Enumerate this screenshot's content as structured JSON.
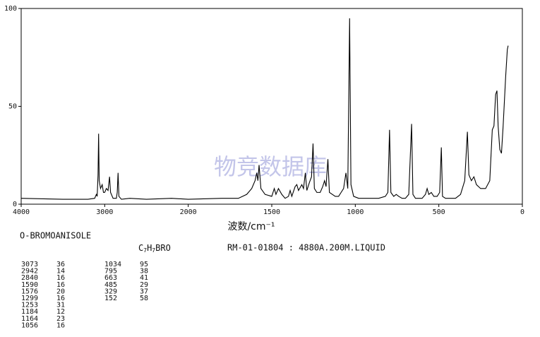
{
  "chart_data": {
    "type": "line",
    "x_label": "波数/cm⁻¹",
    "watermark": "物竞数据库",
    "xlim": [
      4000,
      0
    ],
    "xticks": [
      4000,
      3000,
      2000,
      1500,
      1000,
      500,
      0
    ],
    "ylim": [
      0,
      100
    ],
    "yticks": [
      0,
      50,
      100
    ],
    "color": "#000000",
    "x": [
      4000,
      3500,
      3200,
      3120,
      3100,
      3090,
      3080,
      3073,
      3066,
      3050,
      3030,
      3015,
      3000,
      2980,
      2960,
      2942,
      2930,
      2900,
      2860,
      2850,
      2840,
      2830,
      2800,
      2700,
      2500,
      2200,
      2000,
      1800,
      1700,
      1650,
      1620,
      1600,
      1590,
      1583,
      1576,
      1565,
      1540,
      1500,
      1485,
      1475,
      1460,
      1440,
      1420,
      1400,
      1390,
      1380,
      1360,
      1350,
      1340,
      1320,
      1310,
      1299,
      1290,
      1275,
      1262,
      1253,
      1245,
      1230,
      1210,
      1195,
      1184,
      1175,
      1164,
      1155,
      1120,
      1100,
      1085,
      1070,
      1056,
      1045,
      1034,
      1026,
      1010,
      980,
      950,
      900,
      860,
      820,
      805,
      795,
      787,
      770,
      755,
      740,
      720,
      700,
      680,
      663,
      655,
      640,
      600,
      580,
      570,
      560,
      545,
      530,
      510,
      495,
      485,
      478,
      460,
      420,
      400,
      370,
      345,
      329,
      320,
      305,
      290,
      275,
      250,
      220,
      195,
      180,
      170,
      160,
      152,
      145,
      135,
      125,
      115,
      100,
      90,
      85
    ],
    "values": [
      3,
      2.5,
      2.5,
      3,
      5,
      4,
      15,
      36,
      12,
      8,
      10,
      6,
      6,
      8,
      7,
      14,
      6,
      3,
      3,
      6,
      16,
      4,
      2.5,
      3,
      2.5,
      3,
      2.5,
      3,
      3,
      5,
      8,
      12,
      16,
      12,
      20,
      8,
      5,
      4,
      8,
      5,
      8,
      5,
      3,
      4,
      7,
      4,
      9,
      10,
      7,
      10,
      8,
      16,
      7,
      11,
      14,
      31,
      8,
      6,
      6,
      9,
      12,
      9,
      23,
      6,
      4,
      4,
      6,
      8,
      16,
      8,
      95,
      10,
      4,
      3,
      3,
      3,
      3,
      4,
      6,
      38,
      6,
      4,
      5,
      4,
      3,
      3,
      5,
      41,
      5,
      3,
      3,
      5,
      8,
      5,
      6,
      4,
      4,
      6,
      29,
      4,
      3,
      3,
      3,
      5,
      12,
      37,
      15,
      12,
      14,
      10,
      8,
      8,
      12,
      38,
      40,
      56,
      58,
      40,
      28,
      26,
      40,
      65,
      79,
      81
    ]
  },
  "compound": "O-BROMOANISOLE",
  "formula": [
    "C",
    "7",
    "H",
    "7",
    "BRO"
  ],
  "sample_info": "RM-01-01804 : 4880A.200M.LIQUID",
  "peak_table": {
    "left": [
      [
        3073,
        36
      ],
      [
        2942,
        14
      ],
      [
        2840,
        16
      ],
      [
        1590,
        16
      ],
      [
        1576,
        20
      ],
      [
        1299,
        16
      ],
      [
        1253,
        31
      ],
      [
        1184,
        12
      ],
      [
        1164,
        23
      ],
      [
        1056,
        16
      ]
    ],
    "right": [
      [
        1034,
        95
      ],
      [
        795,
        38
      ],
      [
        663,
        41
      ],
      [
        485,
        29
      ],
      [
        329,
        37
      ],
      [
        152,
        58
      ]
    ]
  }
}
